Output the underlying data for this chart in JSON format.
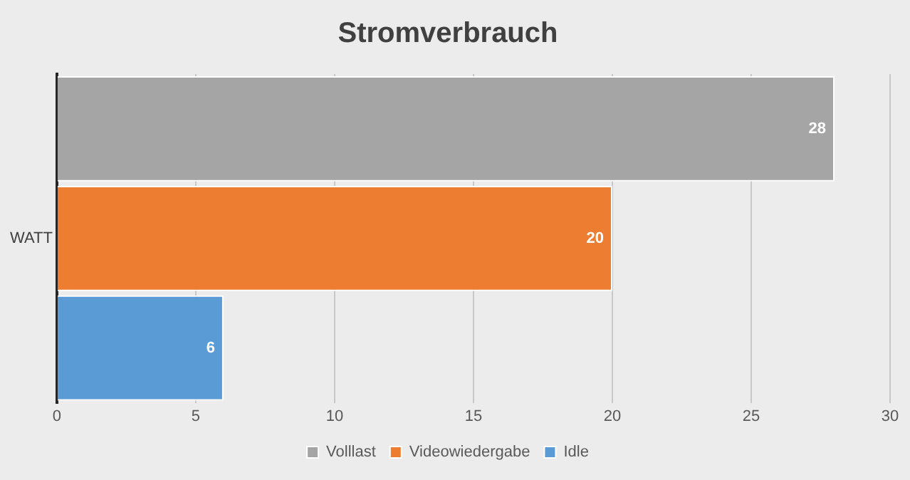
{
  "chart_data": {
    "type": "bar",
    "title": "Stromverbrauch",
    "orientation": "horizontal",
    "categories": [
      null,
      "WATT",
      null
    ],
    "series": [
      {
        "name": "Volllast",
        "color": "#a5a5a5",
        "values": [
          28,
          null,
          null
        ]
      },
      {
        "name": "Videowiedergabe",
        "color": "#ed7d31",
        "values": [
          null,
          20,
          null
        ]
      },
      {
        "name": "Idle",
        "color": "#5b9bd5",
        "values": [
          null,
          null,
          6
        ]
      }
    ],
    "xlim": [
      0,
      30
    ],
    "xticks": [
      0,
      5,
      10,
      15,
      20,
      25,
      30
    ],
    "grid": "x",
    "legend": "bottom",
    "data_labels": true
  }
}
